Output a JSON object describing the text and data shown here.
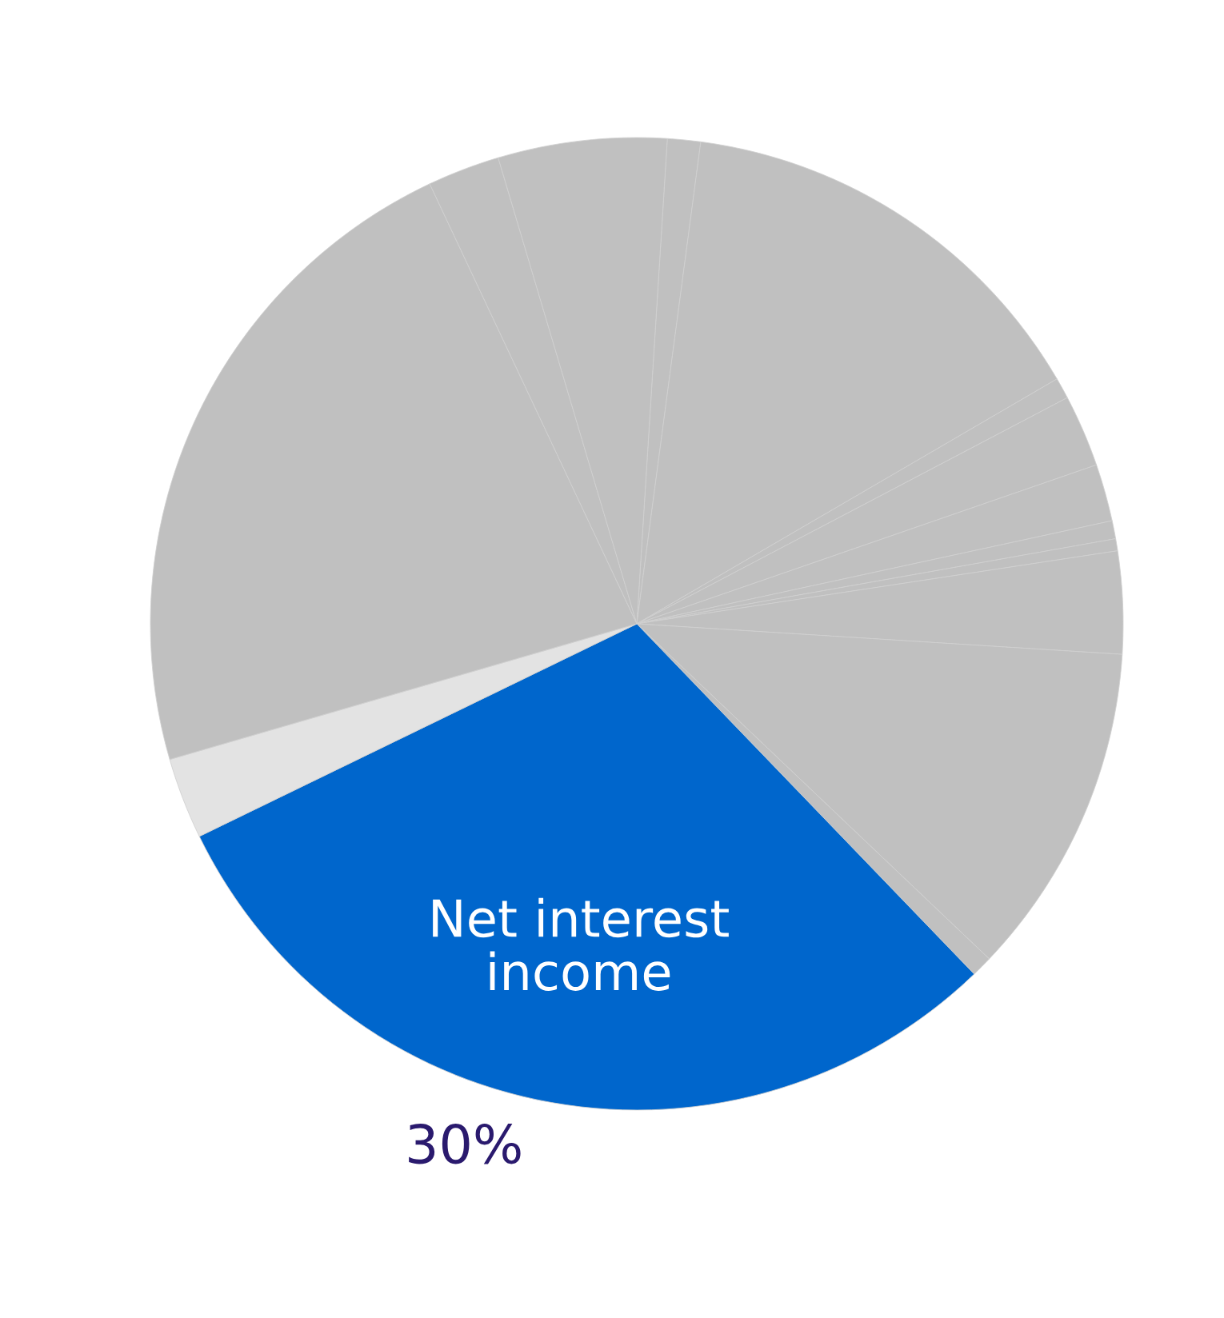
{
  "chart_data": {
    "type": "pie",
    "categories": [
      null,
      null,
      null,
      null,
      null,
      null,
      null,
      null,
      null,
      null,
      "Net interest income",
      null,
      null,
      null,
      null
    ],
    "values": [
      1.1,
      14.5,
      0.7,
      2.4,
      1.9,
      0.6,
      0.4,
      3.4,
      11.1,
      0.7,
      30,
      2.7,
      22.5,
      2.4,
      5.6
    ],
    "colors": [
      "#c0c0c0",
      "#c0c0c0",
      "#c0c0c0",
      "#c0c0c0",
      "#c0c0c0",
      "#c0c0c0",
      "#c0c0c0",
      "#c0c0c0",
      "#c0c0c0",
      "#c0c0c0",
      "#0066cc",
      "#e3e3e3",
      "#c0c0c0",
      "#c0c0c0",
      "#c0c0c0"
    ],
    "value_labels": [
      null,
      null,
      null,
      null,
      null,
      null,
      null,
      null,
      null,
      null,
      "30%",
      null,
      null,
      null,
      null
    ],
    "legend": false
  }
}
